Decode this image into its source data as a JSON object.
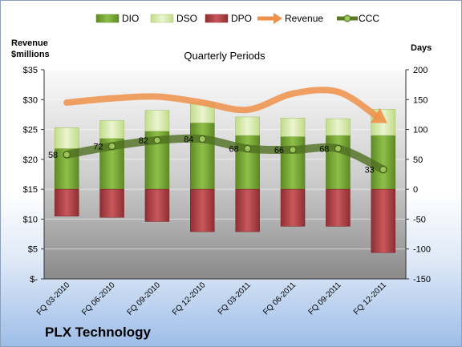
{
  "chart_data": {
    "type": "bar",
    "title": "Quarterly Periods",
    "company": "PLX Technology",
    "left_axis_title_line1": "Revenue",
    "left_axis_title_line2": "$millions",
    "right_axis_title": "Days",
    "categories": [
      "FQ 03-2010",
      "FQ 06-2010",
      "FQ 09-2010",
      "FQ 12-2010",
      "FQ 03-2011",
      "FQ 06-2011",
      "FQ 09-2011",
      "FQ 12-2011"
    ],
    "left_ticks": [
      "$35",
      "$30",
      "$25",
      "$20",
      "$15",
      "$10",
      "$5",
      "$-"
    ],
    "right_ticks": [
      "200",
      "150",
      "100",
      "50",
      "0",
      "-50",
      "-100",
      "-150"
    ],
    "left_axis_range": [
      0,
      35
    ],
    "right_axis_range": [
      -150,
      200
    ],
    "legend_position": "top",
    "series": [
      {
        "name": "DIO",
        "axis": "right",
        "color": "#7ea83c",
        "values": [
          68,
          85,
          97,
          111,
          90,
          88,
          90,
          90
        ]
      },
      {
        "name": "DSO",
        "axis": "right",
        "color": "#d3e8a6",
        "values": [
          35,
          30,
          35,
          34,
          31,
          31,
          28,
          44
        ]
      },
      {
        "name": "DPO",
        "axis": "right",
        "color": "#b5474b",
        "values": [
          -45,
          -47,
          -54,
          -71,
          -71,
          -62,
          -62,
          -106
        ]
      },
      {
        "name": "Revenue",
        "axis": "left",
        "color": "#f0914a",
        "values": [
          29.5,
          30.2,
          30.5,
          29.5,
          28.3,
          31.0,
          31.3,
          26.5
        ]
      },
      {
        "name": "CCC",
        "axis": "right",
        "color": "#5a7a28",
        "values": [
          58,
          72,
          82,
          84,
          68,
          66,
          68,
          33
        ]
      }
    ],
    "data_labels": [
      "58",
      "72",
      "82",
      "84",
      "68",
      "66",
      "68",
      "33"
    ],
    "grid": true
  }
}
